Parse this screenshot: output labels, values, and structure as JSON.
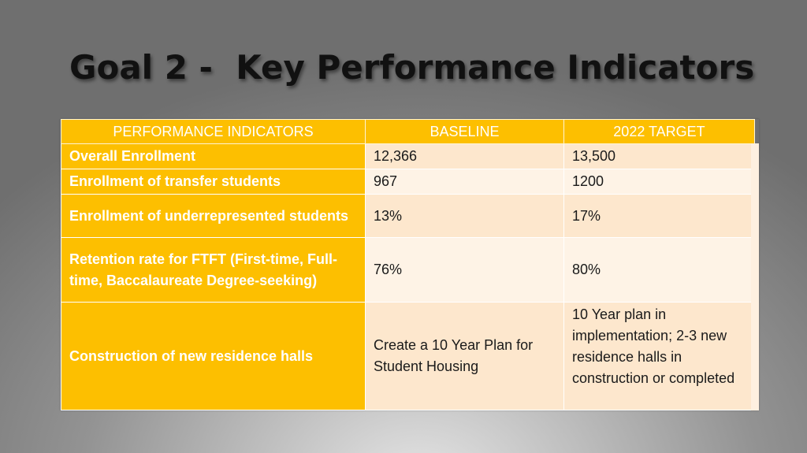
{
  "slide": {
    "title": "Goal 2 -  Key Performance Indicators"
  },
  "table": {
    "headers": [
      "PERFORMANCE INDICATORS",
      "BASELINE",
      "2022 TARGET"
    ],
    "rows": [
      {
        "indicator": "Overall Enrollment",
        "baseline": "12,366",
        "target": "13,500"
      },
      {
        "indicator": "Enrollment of transfer students",
        "baseline": "967",
        "target": "1200"
      },
      {
        "indicator": "Enrollment of underrepresented students",
        "baseline": "13%",
        "target": "17%"
      },
      {
        "indicator": "Retention rate for FTFT (First-time, Full-time, Baccalaureate Degree-seeking)",
        "baseline": "76%",
        "target": "80%"
      },
      {
        "indicator": "Construction of new residence halls",
        "baseline": "Create a 10 Year Plan for Student Housing",
        "target": "10 Year plan in implementation; 2-3 new residence halls in construction or completed"
      }
    ]
  },
  "colors": {
    "accent": "#fdbf00",
    "row_odd": "#fde7cd",
    "row_even": "#fef3e6",
    "title_text": "#111111"
  }
}
